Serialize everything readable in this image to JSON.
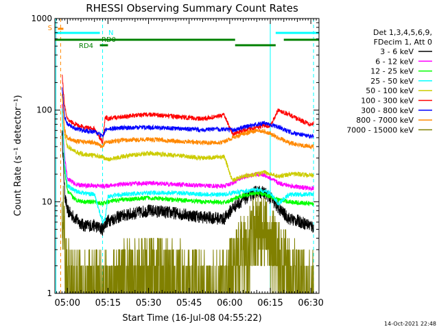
{
  "chart_data": {
    "type": "line",
    "title": "RHESSI Observing Summary Count Rates",
    "xlabel": "Start Time (16-Jul-08 04:55:22)",
    "ylabel": "Count Rate (s⁻¹ detector⁻¹)",
    "yscale": "log",
    "ylim": [
      1,
      1000
    ],
    "xlim": [
      "04:55:22",
      "06:33:00"
    ],
    "x_ticks": [
      "05:00",
      "05:15",
      "05:30",
      "05:45",
      "06:00",
      "06:15",
      "06:30"
    ],
    "y_ticks": [
      "1",
      "10",
      "100",
      "1000"
    ],
    "timestamp": "14-Oct-2021 22:48",
    "legend_position": "right",
    "legend_header": [
      "Det 1,3,4,5,6,9,",
      "FDecim 1, Att 0"
    ],
    "series": [
      {
        "name": "3 - 6 keV",
        "color": "#000000",
        "x": [
          "04:58",
          "04:59",
          "05:00",
          "05:03",
          "05:06",
          "05:10",
          "05:13",
          "05:14",
          "05:15",
          "05:20",
          "05:30",
          "05:40",
          "05:50",
          "05:58",
          "06:01",
          "06:05",
          "06:10",
          "06:13",
          "06:15",
          "06:18",
          "06:22",
          "06:25",
          "06:30",
          "06:31"
        ],
        "y": [
          60,
          12,
          8,
          6.5,
          5.5,
          5.5,
          5,
          5.8,
          6.2,
          7,
          8,
          7.5,
          6.8,
          6.5,
          8.5,
          10.5,
          13,
          12.5,
          11,
          8.5,
          6.5,
          6.2,
          5.5,
          5.2
        ]
      },
      {
        "name": "6 - 12 keV",
        "color": "#ff00ff",
        "x": [
          "04:58",
          "04:59",
          "05:00",
          "05:03",
          "05:06",
          "05:10",
          "05:13",
          "05:14",
          "05:15",
          "05:20",
          "05:30",
          "05:40",
          "05:50",
          "05:58",
          "06:01",
          "06:05",
          "06:10",
          "06:13",
          "06:15",
          "06:18",
          "06:22",
          "06:25",
          "06:30",
          "06:31"
        ],
        "y": [
          120,
          30,
          18,
          15.5,
          15,
          15,
          14.8,
          14.8,
          15,
          15.5,
          16,
          15.5,
          15,
          14.8,
          16,
          18.5,
          20,
          19.5,
          18,
          16,
          15,
          14.5,
          14,
          14
        ]
      },
      {
        "name": "12 - 25 keV",
        "color": "#00ff00",
        "x": [
          "04:58",
          "04:59",
          "05:00",
          "05:03",
          "05:06",
          "05:10",
          "05:13",
          "05:14",
          "05:15",
          "05:20",
          "05:30",
          "05:40",
          "05:50",
          "05:58",
          "06:01",
          "06:05",
          "06:10",
          "06:13",
          "06:15",
          "06:18",
          "06:22",
          "06:25",
          "06:30",
          "06:31"
        ],
        "y": [
          100,
          22,
          13,
          10.5,
          10,
          10,
          9.5,
          9.8,
          10,
          10.5,
          11,
          10.5,
          10,
          9.8,
          10.5,
          11.8,
          12.5,
          12,
          11.5,
          10.5,
          10,
          9.8,
          9.5,
          9.5
        ]
      },
      {
        "name": "25 - 50 keV",
        "color": "#00ffff",
        "x": [
          "04:58",
          "04:59",
          "05:00",
          "05:03",
          "05:06",
          "05:10",
          "05:13",
          "05:14",
          "05:15",
          "05:20",
          "05:30",
          "05:40",
          "05:50",
          "05:58",
          "06:01",
          "06:05",
          "06:10",
          "06:13",
          "06:15",
          "06:18",
          "06:22",
          "06:25",
          "06:30",
          "06:31"
        ],
        "y": [
          110,
          25,
          15,
          13,
          12.5,
          12,
          6,
          6.5,
          11.5,
          12,
          12.5,
          12.5,
          12,
          12,
          12.5,
          13,
          13.5,
          13,
          12.5,
          9.5,
          12,
          12,
          12,
          12
        ]
      },
      {
        "name": "50 - 100 keV",
        "color": "#cccc00",
        "x": [
          "04:58",
          "04:59",
          "05:00",
          "05:03",
          "05:06",
          "05:10",
          "05:13",
          "05:14",
          "05:15",
          "05:20",
          "05:30",
          "05:40",
          "05:50",
          "05:58",
          "06:01",
          "06:05",
          "06:10",
          "06:13",
          "06:15",
          "06:18",
          "06:22",
          "06:25",
          "06:30",
          "06:31"
        ],
        "y": [
          150,
          55,
          40,
          35,
          33,
          32,
          31,
          29,
          29,
          31,
          34,
          32,
          30,
          31,
          17,
          19,
          20,
          21,
          20,
          19,
          20,
          20,
          19.5,
          19.5
        ]
      },
      {
        "name": "100 - 300 keV",
        "color": "#ff0000",
        "x": [
          "04:58",
          "04:59",
          "05:00",
          "05:03",
          "05:06",
          "05:10",
          "05:13",
          "05:14",
          "05:15",
          "05:20",
          "05:30",
          "05:40",
          "05:50",
          "05:58",
          "06:01",
          "06:05",
          "06:10",
          "06:13",
          "06:15",
          "06:18",
          "06:22",
          "06:25",
          "06:30",
          "06:31"
        ],
        "y": [
          250,
          110,
          80,
          70,
          65,
          62,
          45,
          85,
          80,
          85,
          90,
          85,
          80,
          88,
          55,
          60,
          65,
          68,
          67,
          100,
          90,
          80,
          70,
          72
        ]
      },
      {
        "name": "300 - 800 keV",
        "color": "#0000ff",
        "x": [
          "04:58",
          "04:59",
          "05:00",
          "05:03",
          "05:06",
          "05:10",
          "05:13",
          "05:14",
          "05:15",
          "05:20",
          "05:30",
          "05:40",
          "05:50",
          "05:58",
          "06:01",
          "06:05",
          "06:10",
          "06:13",
          "06:15",
          "06:18",
          "06:22",
          "06:25",
          "06:30",
          "06:31"
        ],
        "y": [
          180,
          85,
          70,
          63,
          60,
          58,
          52,
          60,
          62,
          64,
          65,
          63,
          61,
          62,
          60,
          65,
          70,
          72,
          70,
          65,
          58,
          55,
          52,
          52
        ]
      },
      {
        "name": "800 - 7000 keV",
        "color": "#ff8800",
        "x": [
          "04:58",
          "04:59",
          "05:00",
          "05:03",
          "05:06",
          "05:10",
          "05:13",
          "05:14",
          "05:15",
          "05:20",
          "05:30",
          "05:40",
          "05:50",
          "05:58",
          "06:01",
          "06:05",
          "06:10",
          "06:13",
          "06:15",
          "06:18",
          "06:22",
          "06:25",
          "06:30",
          "06:31"
        ],
        "y": [
          150,
          60,
          50,
          46,
          45,
          44,
          40,
          45,
          45,
          47,
          48,
          46,
          44,
          45,
          50,
          55,
          60,
          58,
          55,
          50,
          44,
          42,
          40,
          40
        ]
      },
      {
        "name": "7000 - 15000 keV",
        "color": "#808000",
        "x": [
          "04:58",
          "04:59",
          "05:00",
          "05:03",
          "05:06",
          "05:10",
          "05:13",
          "05:14",
          "05:15",
          "05:20",
          "05:30",
          "05:40",
          "05:50",
          "05:58",
          "06:01",
          "06:05",
          "06:10",
          "06:13",
          "06:15",
          "06:18",
          "06:22",
          "06:25",
          "06:30",
          "06:31"
        ],
        "y": [
          10,
          3,
          1.5,
          1,
          1,
          1.2,
          1,
          1,
          1,
          1.3,
          1.6,
          1.3,
          1.1,
          1,
          1.5,
          3,
          4.5,
          4,
          3.5,
          2.5,
          1.5,
          1.2,
          1,
          1
        ]
      }
    ],
    "annotations": {
      "S": {
        "label": "S",
        "color": "#ff8800"
      },
      "N": {
        "label": "N",
        "color": "#00ffff"
      },
      "RD0": {
        "label": "RD0",
        "color": "#008000"
      },
      "RD4": {
        "label": "RD4",
        "color": "#008000"
      }
    },
    "night_intervals": [
      [
        "04:55:22",
        "05:12:00"
      ],
      [
        "06:17:00",
        "06:33:00"
      ]
    ],
    "rd0_intervals": [
      [
        "04:55:22",
        "06:02:00"
      ],
      [
        "06:20:00",
        "06:33:00"
      ]
    ],
    "rd4_intervals": [
      [
        "05:12:00",
        "05:15:00"
      ],
      [
        "06:02:00",
        "06:17:00"
      ]
    ],
    "saa_marker_time": "04:57:30",
    "vertical_markers": [
      {
        "time": "04:55:45",
        "color": "#00ffff",
        "style": "solid"
      },
      {
        "time": "04:57:30",
        "color": "#ff8800",
        "style": "dashed"
      },
      {
        "time": "05:13:00",
        "color": "#00ffff",
        "style": "dashed"
      },
      {
        "time": "06:15:00",
        "color": "#00ffff",
        "style": "solid"
      },
      {
        "time": "06:31:00",
        "color": "#00ffff",
        "style": "dashed"
      }
    ]
  }
}
